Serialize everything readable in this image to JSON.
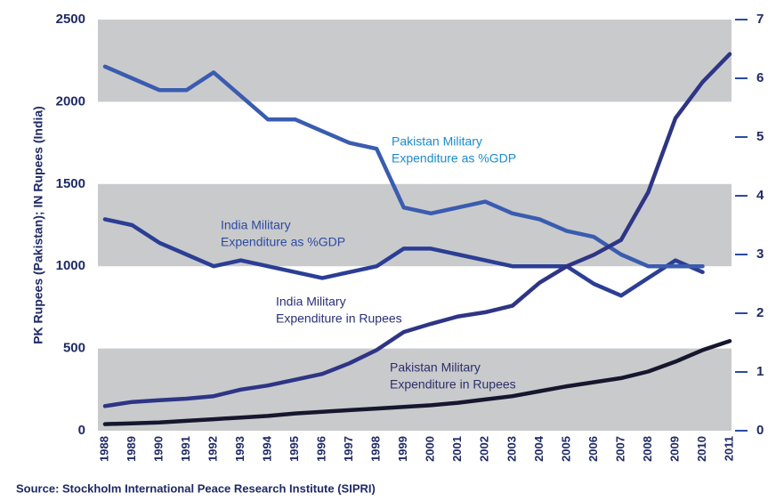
{
  "chart_data": {
    "type": "line",
    "ylabel": "PK Rupees (Pakistan); IN Rupees (India)",
    "source": "Source: Stockholm International Peace Research Institute (SIPRI)",
    "categories": [
      "1988",
      "1989",
      "1990",
      "1991",
      "1992",
      "1993",
      "1994",
      "1995",
      "1996",
      "1997",
      "1998",
      "1999",
      "2000",
      "2001",
      "2002",
      "2003",
      "2004",
      "2005",
      "2006",
      "2007",
      "2008",
      "2009",
      "2010",
      "2011"
    ],
    "ylim": [
      0,
      2500
    ],
    "yticks": [
      0,
      500,
      1000,
      1500,
      2000,
      2500
    ],
    "y2lim": [
      0,
      7
    ],
    "y2ticks": [
      0,
      1,
      2,
      3,
      4,
      5,
      6,
      7
    ],
    "band_color": "#c9cacc",
    "series": [
      {
        "color": "#2b3e95",
        "axis": "y2",
        "values": [
          3.6,
          3.5,
          3.2,
          3.0,
          2.8,
          2.9,
          2.8,
          2.7,
          2.6,
          2.7,
          2.8,
          3.1,
          3.1,
          3.0,
          2.9,
          2.8,
          2.8,
          2.8,
          2.5,
          2.3,
          2.6,
          2.9,
          2.7,
          null
        ]
      },
      {
        "color": "#3a5cb0",
        "axis": "y2",
        "values": [
          6.2,
          6.0,
          5.8,
          5.8,
          6.1,
          5.7,
          5.3,
          5.3,
          5.1,
          4.9,
          4.8,
          3.8,
          3.7,
          3.8,
          3.9,
          3.7,
          3.6,
          3.4,
          3.3,
          3.0,
          2.8,
          2.8,
          2.8,
          null
        ]
      },
      {
        "color": "#2e3585",
        "values": [
          150,
          175,
          185,
          195,
          210,
          250,
          275,
          310,
          345,
          410,
          490,
          600,
          650,
          695,
          720,
          760,
          900,
          1000,
          1070,
          1160,
          1450,
          1900,
          2120,
          2290
        ]
      },
      {
        "color": "#15172e",
        "values": [
          40,
          45,
          50,
          60,
          70,
          80,
          90,
          105,
          115,
          125,
          135,
          145,
          155,
          170,
          190,
          210,
          240,
          270,
          295,
          320,
          360,
          420,
          490,
          545
        ]
      }
    ],
    "annotations": [
      {
        "lines": [
          "Pakistan Military",
          "Expenditure as %GDP"
        ],
        "color": "#1b8bcb"
      },
      {
        "lines": [
          "India Military",
          "Expenditure as %GDP"
        ],
        "color": "#2b4aa3"
      },
      {
        "lines": [
          "India Military",
          "Expenditure in Rupees"
        ],
        "color": "#2a2f78"
      },
      {
        "lines": [
          "Pakistan Military",
          "Expenditure in Rupees"
        ],
        "color": "#2a2f6a"
      }
    ]
  }
}
